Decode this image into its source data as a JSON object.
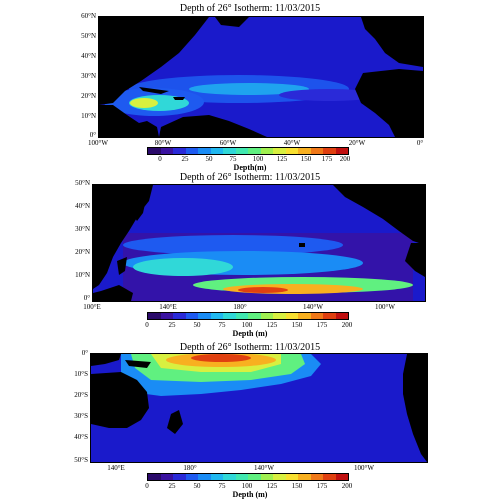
{
  "colors": {
    "ocean_low": "#1a1acb",
    "land": "#000000",
    "scale": [
      "#2a0a6a",
      "#3a12a0",
      "#2a2ad8",
      "#1e5af0",
      "#1a8cf5",
      "#20b8f0",
      "#30d8d8",
      "#40e8b0",
      "#60f080",
      "#a0f050",
      "#d8f040",
      "#f8e030",
      "#f8b020",
      "#f07818",
      "#e04010",
      "#c01010"
    ]
  },
  "panels": [
    {
      "title": "Depth of 26° Isotherm: 11/03/2015",
      "lat_labels": [
        "60°N",
        "50°N",
        "40°N",
        "30°N",
        "20°N",
        "10°N",
        "0°"
      ],
      "lon_labels": [
        "100°W",
        "80°W",
        "60°W",
        "40°W",
        "20°W",
        "0°"
      ],
      "cbar_ticks": [
        "0",
        "25",
        "50",
        "75",
        "100",
        "125",
        "150",
        "175",
        "200"
      ],
      "cbar_title": "Depth(m)"
    },
    {
      "title": "Depth of 26° Isotherm: 11/03/2015",
      "lat_labels": [
        "50°N",
        "40°N",
        "30°N",
        "20°N",
        "10°N",
        "0°"
      ],
      "lon_labels": [
        "100°E",
        "140°E",
        "180°",
        "140°W",
        "100°W"
      ],
      "cbar_ticks": [
        "0",
        "25",
        "50",
        "75",
        "100",
        "125",
        "150",
        "175",
        "200"
      ],
      "cbar_title": "Depth (m)"
    },
    {
      "title": "Depth of 26° Isotherm: 11/03/2015",
      "lat_labels": [
        "0°",
        "10°S",
        "20°S",
        "30°S",
        "40°S",
        "50°S"
      ],
      "lon_labels": [
        "140°E",
        "180°",
        "140°W",
        "100°W"
      ],
      "cbar_ticks": [
        "0",
        "25",
        "50",
        "75",
        "100",
        "125",
        "150",
        "175",
        "200"
      ],
      "cbar_title": "Depth (m)"
    }
  ]
}
